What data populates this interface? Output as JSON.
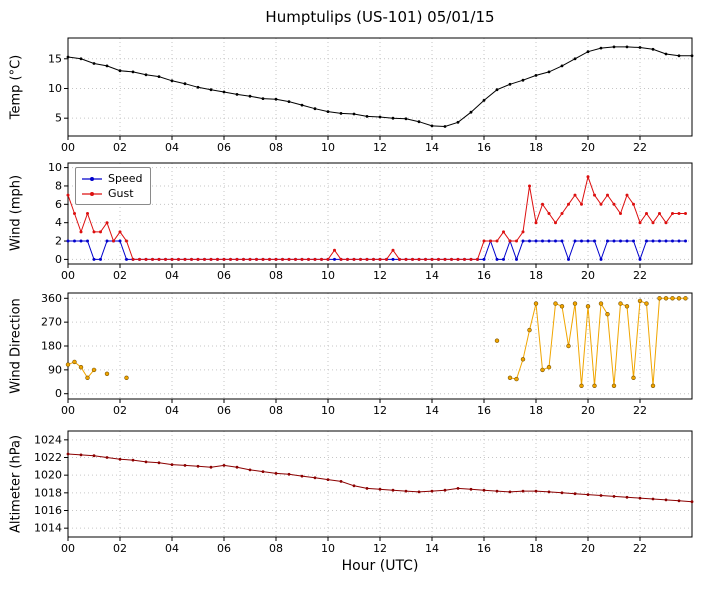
{
  "title": "Humptulips (US-101) 05/01/15",
  "xlabel": "Hour (UTC)",
  "xtick_labels": [
    "00",
    "02",
    "04",
    "06",
    "08",
    "10",
    "12",
    "14",
    "16",
    "18",
    "20",
    "22"
  ],
  "legend": {
    "speed": "Speed",
    "gust": "Gust"
  },
  "colors": {
    "temp": "#000000",
    "speed": "#0000cc",
    "gust": "#dd1010",
    "direction": "#f0a500",
    "altimeter": "#8b0000",
    "grid": "#c6c6c6"
  },
  "chart_data": [
    {
      "type": "line",
      "name": "temperature",
      "ylabel": "Temp (°C)",
      "ylim": [
        2,
        18.5
      ],
      "yticks": [
        5,
        10,
        15
      ],
      "xlim": [
        0,
        24
      ],
      "grid": true,
      "x_start": 0,
      "x_step": 0.5,
      "series": [
        {
          "name": "temp",
          "color_key": "temp",
          "marker_r": 1.4,
          "values": [
            15.3,
            15.0,
            14.2,
            13.8,
            13.0,
            12.8,
            12.3,
            12.0,
            11.3,
            10.8,
            10.2,
            9.8,
            9.4,
            9.0,
            8.7,
            8.3,
            8.2,
            7.8,
            7.2,
            6.6,
            6.1,
            5.8,
            5.7,
            5.3,
            5.2,
            5.0,
            4.9,
            4.4,
            3.7,
            3.6,
            4.3,
            6.0,
            8.0,
            9.8,
            10.7,
            11.4,
            12.2,
            12.8,
            13.8,
            15.0,
            16.2,
            16.8,
            17.0,
            17.0,
            16.9,
            16.6,
            15.8,
            15.5,
            15.5
          ]
        }
      ]
    },
    {
      "type": "line",
      "name": "wind",
      "ylabel": "Wind (mph)",
      "ylim": [
        -0.5,
        10.5
      ],
      "yticks": [
        0,
        2,
        4,
        6,
        8,
        10
      ],
      "xlim": [
        0,
        24
      ],
      "grid": true,
      "legend_position": "upper-left",
      "x_start": 0,
      "x_step": 0.25,
      "series": [
        {
          "name": "speed",
          "color_key": "speed",
          "marker_r": 1.5,
          "values": [
            2,
            2,
            2,
            2,
            0,
            0,
            2,
            2,
            2,
            0,
            0,
            0,
            0,
            0,
            0,
            0,
            0,
            0,
            0,
            0,
            0,
            0,
            0,
            0,
            0,
            0,
            0,
            0,
            0,
            0,
            0,
            0,
            0,
            0,
            0,
            0,
            0,
            0,
            0,
            0,
            0,
            0,
            0,
            0,
            0,
            0,
            0,
            0,
            0,
            0,
            0,
            0,
            0,
            0,
            0,
            0,
            0,
            0,
            0,
            0,
            0,
            0,
            0,
            0,
            0,
            2,
            0,
            0,
            2,
            0,
            2,
            2,
            2,
            2,
            2,
            2,
            2,
            0,
            2,
            2,
            2,
            2,
            0,
            2,
            2,
            2,
            2,
            2,
            0,
            2,
            2,
            2,
            2,
            2,
            2,
            2
          ]
        },
        {
          "name": "gust",
          "color_key": "gust",
          "marker_r": 1.5,
          "values": [
            7,
            5,
            3,
            5,
            3,
            3,
            4,
            2,
            3,
            2,
            0,
            0,
            0,
            0,
            0,
            0,
            0,
            0,
            0,
            0,
            0,
            0,
            0,
            0,
            0,
            0,
            0,
            0,
            0,
            0,
            0,
            0,
            0,
            0,
            0,
            0,
            0,
            0,
            0,
            0,
            0,
            1,
            0,
            0,
            0,
            0,
            0,
            0,
            0,
            0,
            1,
            0,
            0,
            0,
            0,
            0,
            0,
            0,
            0,
            0,
            0,
            0,
            0,
            0,
            2,
            2,
            2,
            3,
            2,
            2,
            3,
            8,
            4,
            6,
            5,
            4,
            5,
            6,
            7,
            6,
            9,
            7,
            6,
            7,
            6,
            5,
            7,
            6,
            4,
            5,
            4,
            5,
            4,
            5,
            5,
            5
          ]
        }
      ]
    },
    {
      "type": "line",
      "name": "wind_direction",
      "ylabel": "Wind Direction",
      "ylim": [
        -20,
        380
      ],
      "yticks": [
        0,
        90,
        180,
        270,
        360
      ],
      "xlim": [
        0,
        24
      ],
      "grid": true,
      "x_start": 0,
      "x_step": 0.25,
      "series": [
        {
          "name": "direction",
          "color_key": "direction",
          "marker_r": 1.9,
          "marker_stroke": "#7a5200",
          "values": [
            110,
            120,
            100,
            60,
            90,
            null,
            75,
            null,
            null,
            60,
            null,
            null,
            null,
            null,
            null,
            null,
            null,
            null,
            null,
            null,
            null,
            null,
            null,
            null,
            null,
            null,
            null,
            null,
            null,
            null,
            null,
            null,
            null,
            null,
            null,
            null,
            null,
            null,
            null,
            null,
            null,
            null,
            null,
            null,
            null,
            null,
            null,
            null,
            null,
            null,
            null,
            null,
            null,
            null,
            null,
            null,
            null,
            null,
            null,
            null,
            null,
            null,
            null,
            null,
            null,
            null,
            200,
            null,
            60,
            55,
            130,
            240,
            340,
            90,
            100,
            340,
            330,
            180,
            340,
            30,
            330,
            30,
            340,
            300,
            30,
            340,
            330,
            60,
            350,
            340,
            30,
            360,
            360,
            360,
            360,
            360
          ]
        }
      ]
    },
    {
      "type": "line",
      "name": "altimeter",
      "ylabel": "Altimeter (hPa)",
      "ylim": [
        1013,
        1025
      ],
      "yticks": [
        1014,
        1016,
        1018,
        1020,
        1022,
        1024
      ],
      "xlim": [
        0,
        24
      ],
      "grid": true,
      "x_start": 0,
      "x_step": 0.5,
      "series": [
        {
          "name": "altimeter",
          "color_key": "altimeter",
          "marker_r": 1.4,
          "values": [
            1022.4,
            1022.3,
            1022.2,
            1022.0,
            1021.8,
            1021.7,
            1021.5,
            1021.4,
            1021.2,
            1021.1,
            1021.0,
            1020.9,
            1021.1,
            1020.9,
            1020.6,
            1020.4,
            1020.2,
            1020.1,
            1019.9,
            1019.7,
            1019.5,
            1019.3,
            1018.8,
            1018.5,
            1018.4,
            1018.3,
            1018.2,
            1018.1,
            1018.2,
            1018.3,
            1018.5,
            1018.4,
            1018.3,
            1018.2,
            1018.1,
            1018.2,
            1018.2,
            1018.1,
            1018.0,
            1017.9,
            1017.8,
            1017.7,
            1017.6,
            1017.5,
            1017.4,
            1017.3,
            1017.2,
            1017.1,
            1017.0
          ]
        }
      ]
    }
  ]
}
